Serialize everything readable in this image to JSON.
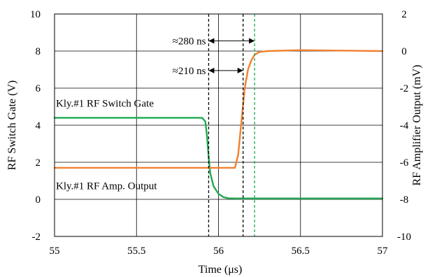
{
  "chart_data": {
    "type": "line",
    "xlabel": "Time (μs)",
    "ylabel_left": "RF Switch Gate (V)",
    "ylabel_right": "RF Amplifier Output (mV)",
    "xlim": [
      55,
      57
    ],
    "ylim_left": [
      -2,
      10
    ],
    "ylim_right": [
      -10,
      2
    ],
    "x_ticks": [
      "55",
      "55.5",
      "56",
      "56.5",
      "57"
    ],
    "y_left_ticks": [
      "-2",
      "0",
      "2",
      "4",
      "6",
      "8",
      "10"
    ],
    "y_right_ticks": [
      "-10",
      "-8",
      "-6",
      "-4",
      "-2",
      "0",
      "2"
    ],
    "grid": true,
    "series": [
      {
        "name": "Kly.#1 RF Switch Gate",
        "axis": "left",
        "color": "#1faa50",
        "x": [
          55.0,
          55.5,
          55.9,
          55.92,
          55.93,
          55.94,
          55.95,
          55.97,
          56.0,
          56.03,
          56.06,
          56.1,
          56.5,
          57.0
        ],
        "y": [
          4.4,
          4.4,
          4.4,
          4.2,
          3.4,
          2.3,
          1.4,
          0.7,
          0.3,
          0.12,
          0.06,
          0.05,
          0.05,
          0.05
        ]
      },
      {
        "name": "Kly.#1 RF Amp. Output",
        "axis": "right",
        "color": "#f08030",
        "x": [
          55.0,
          55.5,
          55.9,
          56.1,
          56.12,
          56.14,
          56.16,
          56.18,
          56.2,
          56.22,
          56.25,
          56.3,
          56.5,
          57.0
        ],
        "y": [
          -6.3,
          -6.3,
          -6.3,
          -6.3,
          -5.6,
          -3.8,
          -2.0,
          -1.0,
          -0.5,
          -0.2,
          -0.05,
          0.0,
          0.05,
          0.0
        ]
      }
    ],
    "markers": [
      {
        "x": 55.94,
        "color": "#000000"
      },
      {
        "x": 56.15,
        "color": "#000000"
      },
      {
        "x": 56.22,
        "color": "#1faa50"
      }
    ],
    "annotations": [
      {
        "text": "≈280 ns",
        "x_start": 55.94,
        "x_end": 56.22,
        "y_left": 8.55
      },
      {
        "text": "≈210 ns",
        "x_start": 55.94,
        "x_end": 56.15,
        "y_left": 6.95
      }
    ],
    "series_labels": [
      {
        "text": "Kly.#1 RF Switch Gate",
        "x": 55.0,
        "y_left": 5.0
      },
      {
        "text": "Kly.#1 RF Amp. Output",
        "x": 55.0,
        "y_left": 0.55
      }
    ]
  }
}
